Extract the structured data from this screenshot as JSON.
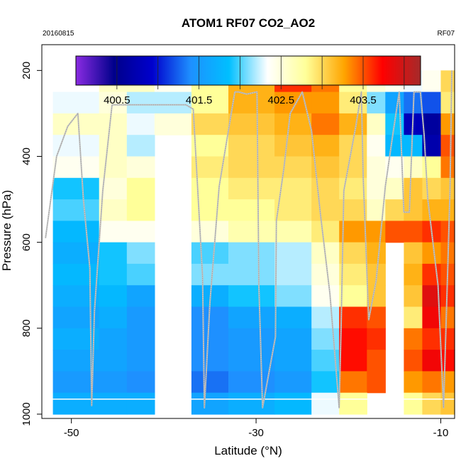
{
  "chart_data": {
    "type": "heatmap",
    "title": "ATOM1 RF07 CO2_AO2",
    "date_label": "20160815",
    "flight_label": "RF07",
    "xlabel": "Latitude (°N)",
    "ylabel": "Pressure (hPa)",
    "xlim": [
      -53.2,
      -8.5
    ],
    "ylim": [
      1010,
      140
    ],
    "x_ticks": [
      -50,
      -30,
      -10
    ],
    "x_tick_labels": [
      "-50",
      "-30",
      "-10"
    ],
    "y_ticks": [
      200,
      400,
      600,
      800,
      1000
    ],
    "y_tick_labels": [
      "200",
      "400",
      "600",
      "800",
      "1000"
    ],
    "colorbar": {
      "min": 400.0,
      "max": 404.2,
      "ticks": [
        400.5,
        401.5,
        402.5,
        403.5
      ],
      "tick_labels": [
        "400.5",
        "401.5",
        "402.5",
        "403.5"
      ],
      "divisions": [
        400.5,
        401.0,
        401.5,
        402.0,
        402.5,
        403.0,
        403.5,
        404.0
      ],
      "stops": [
        "#8a2be2",
        "#00008b",
        "#0000cd",
        "#1e90ff",
        "#00bfff",
        "#ffffff",
        "#ffff99",
        "#ffa500",
        "#ff0000",
        "#a52a2a"
      ]
    },
    "lat_edges": [
      -52.0,
      -47.0,
      -44.0,
      -41.0,
      -37.0,
      -33.0,
      -28.0,
      -24.0,
      -21.0,
      -18.0,
      -16.0,
      -14.0,
      -12.0,
      -10.0,
      -8.5
    ],
    "pressure_levels": [
      225,
      275,
      325,
      375,
      425,
      475,
      525,
      575,
      625,
      675,
      725,
      775,
      825,
      875,
      925,
      975
    ],
    "co2_ppm": [
      [
        null,
        402.6,
        402.6,
        402.4,
        402.8,
        403.2,
        403.6,
        403.4,
        402.8,
        402.5,
        402.4,
        402.3,
        402.4,
        403.0
      ],
      [
        402.3,
        402.5,
        402.2,
        402.2,
        402.8,
        403.2,
        403.3,
        403.3,
        402.9,
        402.1,
        401.6,
        401.3,
        401.2,
        402.9
      ],
      [
        402.6,
        402.6,
        402.3,
        402.5,
        403.0,
        403.1,
        403.2,
        403.4,
        403.2,
        402.6,
        401.9,
        400.8,
        400.6,
        403.3
      ],
      [
        402.3,
        402.6,
        402.2,
        null,
        402.8,
        403.0,
        403.1,
        403.2,
        403.0,
        402.4,
        401.8,
        401.8,
        400.7,
        403.5
      ],
      [
        402.4,
        402.6,
        402.5,
        null,
        402.9,
        403.0,
        403.0,
        403.1,
        403.0,
        402.5,
        402.4,
        402.6,
        402.8,
        403.4
      ],
      [
        401.9,
        402.5,
        402.8,
        null,
        402.8,
        402.9,
        402.9,
        403.0,
        402.9,
        402.5,
        402.6,
        403.1,
        403.0,
        403.1
      ],
      [
        402.0,
        402.6,
        402.8,
        null,
        402.8,
        402.8,
        402.9,
        403.0,
        403.0,
        402.6,
        403.0,
        403.1,
        403.2,
        403.2
      ],
      [
        401.8,
        402.4,
        402.4,
        null,
        402.5,
        402.7,
        402.7,
        402.9,
        403.3,
        403.3,
        403.5,
        403.5,
        403.6,
        403.5
      ],
      [
        401.7,
        401.9,
        402.1,
        null,
        402.0,
        402.1,
        402.2,
        402.6,
        403.0,
        403.2,
        null,
        403.1,
        403.3,
        403.4
      ],
      [
        401.8,
        401.9,
        402.0,
        null,
        402.1,
        402.1,
        402.2,
        402.5,
        402.9,
        403.1,
        null,
        403.2,
        403.6,
        403.5
      ],
      [
        401.7,
        401.8,
        401.6,
        null,
        401.7,
        401.9,
        402.1,
        402.4,
        402.8,
        403.1,
        null,
        403.1,
        403.9,
        403.6
      ],
      [
        401.6,
        401.7,
        401.5,
        null,
        401.4,
        401.6,
        401.7,
        402.2,
        403.6,
        403.5,
        null,
        402.9,
        403.8,
        403.4
      ],
      [
        401.7,
        401.6,
        401.5,
        null,
        401.4,
        401.5,
        401.6,
        402.1,
        403.7,
        403.6,
        null,
        403.4,
        403.6,
        403.6
      ],
      [
        401.6,
        401.6,
        401.5,
        null,
        401.4,
        401.5,
        401.6,
        402.0,
        403.7,
        403.5,
        null,
        403.5,
        403.8,
        403.7
      ],
      [
        401.5,
        401.5,
        401.4,
        null,
        401.3,
        401.4,
        401.5,
        401.9,
        403.4,
        403.5,
        null,
        403.3,
        403.4,
        403.3
      ],
      [
        401.7,
        401.7,
        401.7,
        null,
        401.6,
        401.7,
        401.8,
        402.3,
        402.8,
        null,
        null,
        402.8,
        403.0,
        403.1
      ]
    ],
    "flight_track": {
      "latitude": [
        -52.8,
        -51.6,
        -50.4,
        -49.3,
        -48.7,
        -48.0,
        -47.8,
        -47.5,
        -46.6,
        -45.6,
        -43.8,
        -41.0,
        -39.0,
        -37.6,
        -36.8,
        -35.8,
        -35.6,
        -35.0,
        -34.0,
        -32.3,
        -31.9,
        -31.0,
        -29.9,
        -29.7,
        -29.3,
        -27.9,
        -27.8,
        -27.0,
        -26.3,
        -25.0,
        -24.0,
        -23.0,
        -22.0,
        -21.0,
        -20.8,
        -20.5,
        -19.2,
        -18.6,
        -18.4,
        -17.8,
        -17.0,
        -16.0,
        -15.2,
        -14.5,
        -14.0,
        -13.4,
        -12.9,
        -12.2,
        -11.8,
        -11.4,
        -10.3,
        -9.7,
        -9.3,
        -9.0,
        -8.8
      ],
      "pressure": [
        590,
        400,
        330,
        300,
        500,
        660,
        980,
        760,
        480,
        280,
        280,
        280,
        280,
        280,
        290,
        680,
        985,
        740,
        470,
        250,
        250,
        255,
        250,
        700,
        985,
        820,
        550,
        430,
        300,
        250,
        340,
        540,
        720,
        985,
        800,
        480,
        330,
        250,
        450,
        780,
        690,
        470,
        350,
        250,
        530,
        530,
        250,
        250,
        350,
        500,
        700,
        985,
        700,
        480,
        200
      ]
    }
  }
}
